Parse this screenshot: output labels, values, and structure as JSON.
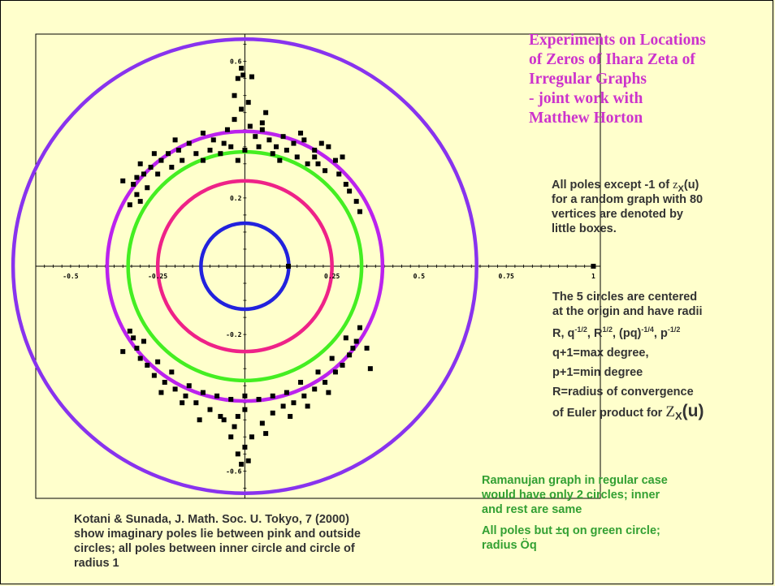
{
  "title_lines": [
    "Experiments on Locations",
    "of Zeros of Ihara Zeta of",
    "Irregular Graphs",
    "- joint work with",
    "Matthew Horton"
  ],
  "poles_text": {
    "line1_a": "All poles except -1 of ",
    "line1_z": "z",
    "line1_sub": "X",
    "line1_b": "(u)",
    "line2": "for a random graph with 80",
    "line3": "vertices are denoted by",
    "line4": "little boxes."
  },
  "circles_text": {
    "line1": "The 5 circles are centered",
    "line2": "at the origin and have radii",
    "radii": {
      "R": "R, q",
      "e1": "-1/2",
      "r2": ", R",
      "e2": "1/2",
      "r3": ", (pq)",
      "e3": "-1/4",
      "r4": ", p",
      "e4": "-1/2"
    },
    "line4": "q+1=max degree,",
    "line5": "p+1=min degree",
    "line6": "R=radius of convergence",
    "line7_a": "of Euler product for ",
    "line7_z": "Z",
    "line7_sub": "X",
    "line7_u": "(u)"
  },
  "ramanujan_text": {
    "line1": "Ramanujan graph in regular case",
    "line2": "would have only 2 circles; inner",
    "line3": "and rest are same",
    "line4": "All poles but ±q on green circle;",
    "line5": "radius Öq"
  },
  "kotani_text": {
    "line1": "Kotani & Sunada, J. Math. Soc. U. Tokyo, 7 (2000)",
    "line2": "show imaginary poles lie between pink and outside",
    "line3": "circles; all poles between inner circle and circle of",
    "line4": "radius 1"
  },
  "colors": {
    "background": "#ffffcc",
    "title": "#cc33cc",
    "body_text": "#333333",
    "green_text": "#33a033",
    "circle_inner": "#2222dd",
    "circle_pink": "#ee2288",
    "circle_green": "#44ee22",
    "circle_magenta": "#bb22ee",
    "circle_outer": "#8833ee",
    "points": "#000000"
  },
  "chart_data": {
    "type": "scatter",
    "title": "",
    "xlabel": "",
    "ylabel": "",
    "xlim": [
      -0.6,
      1.02
    ],
    "ylim": [
      -0.68,
      0.68
    ],
    "grid": false,
    "x_ticks": [
      {
        "v": -0.5,
        "label": "-0.5"
      },
      {
        "v": -0.25,
        "label": "-0.25"
      },
      {
        "v": 0.25,
        "label": "0.25"
      },
      {
        "v": 0.5,
        "label": "0.5"
      },
      {
        "v": 0.75,
        "label": "0.75"
      },
      {
        "v": 1,
        "label": "1"
      }
    ],
    "y_ticks": [
      {
        "v": 0.6,
        "label": "0.6"
      },
      {
        "v": 0.2,
        "label": "0.2"
      },
      {
        "v": -0.2,
        "label": "-0.2"
      },
      {
        "v": -0.6,
        "label": "-0.6"
      }
    ],
    "circles": [
      {
        "name": "inner",
        "r": 0.126,
        "color": "#2222dd"
      },
      {
        "name": "pink",
        "r": 0.25,
        "color": "#ee2288"
      },
      {
        "name": "green",
        "r": 0.335,
        "color": "#44ee22"
      },
      {
        "name": "magenta",
        "r": 0.395,
        "color": "#bb22ee"
      },
      {
        "name": "outer",
        "r": 0.665,
        "color": "#8833ee"
      }
    ],
    "points": [
      [
        1.0,
        0.0
      ],
      [
        0.125,
        0.0
      ],
      [
        -0.01,
        0.58
      ],
      [
        -0.02,
        0.55
      ],
      [
        -0.005,
        0.56
      ],
      [
        0.02,
        0.555
      ],
      [
        0.01,
        0.48
      ],
      [
        -0.01,
        0.46
      ],
      [
        -0.03,
        0.5
      ],
      [
        0.06,
        0.45
      ],
      [
        -0.03,
        0.43
      ],
      [
        0.015,
        0.41
      ],
      [
        -0.05,
        0.4
      ],
      [
        -0.12,
        0.39
      ],
      [
        -0.09,
        0.37
      ],
      [
        -0.06,
        0.36
      ],
      [
        0.05,
        0.4
      ],
      [
        0.03,
        0.38
      ],
      [
        0.07,
        0.37
      ],
      [
        0.09,
        0.35
      ],
      [
        0.11,
        0.38
      ],
      [
        0.14,
        0.36
      ],
      [
        0.17,
        0.37
      ],
      [
        0.2,
        0.34
      ],
      [
        0.24,
        0.35
      ],
      [
        0.26,
        0.31
      ],
      [
        -0.16,
        0.36
      ],
      [
        -0.19,
        0.34
      ],
      [
        -0.22,
        0.33
      ],
      [
        -0.24,
        0.31
      ],
      [
        -0.27,
        0.29
      ],
      [
        -0.29,
        0.27
      ],
      [
        -0.31,
        0.26
      ],
      [
        -0.32,
        0.24
      ],
      [
        -0.31,
        0.21
      ],
      [
        -0.3,
        0.19
      ],
      [
        -0.33,
        0.18
      ],
      [
        -0.28,
        0.23
      ],
      [
        -0.25,
        0.27
      ],
      [
        -0.21,
        0.29
      ],
      [
        -0.18,
        0.31
      ],
      [
        -0.14,
        0.33
      ],
      [
        -0.1,
        0.34
      ],
      [
        -0.07,
        0.33
      ],
      [
        -0.04,
        0.35
      ],
      [
        0.0,
        0.34
      ],
      [
        0.04,
        0.35
      ],
      [
        0.08,
        0.33
      ],
      [
        0.12,
        0.34
      ],
      [
        0.15,
        0.32
      ],
      [
        0.18,
        0.3
      ],
      [
        0.21,
        0.3
      ],
      [
        0.23,
        0.28
      ],
      [
        0.27,
        0.27
      ],
      [
        0.29,
        0.24
      ],
      [
        0.3,
        0.22
      ],
      [
        0.32,
        0.19
      ],
      [
        0.33,
        0.16
      ],
      [
        0.28,
        0.32
      ],
      [
        0.22,
        0.36
      ],
      [
        0.16,
        0.39
      ],
      [
        -0.2,
        0.37
      ],
      [
        -0.26,
        0.33
      ],
      [
        -0.3,
        0.3
      ],
      [
        -0.35,
        0.25
      ],
      [
        -0.12,
        0.31
      ],
      [
        -0.02,
        0.31
      ],
      [
        0.1,
        0.31
      ],
      [
        0.2,
        0.32
      ],
      [
        0.05,
        0.42
      ],
      [
        -0.01,
        -0.58
      ],
      [
        0.01,
        -0.57
      ],
      [
        -0.02,
        -0.55
      ],
      [
        0.0,
        -0.53
      ],
      [
        -0.04,
        -0.5
      ],
      [
        0.02,
        -0.5
      ],
      [
        -0.03,
        -0.47
      ],
      [
        0.05,
        -0.46
      ],
      [
        -0.07,
        -0.44
      ],
      [
        0.08,
        -0.43
      ],
      [
        -0.1,
        -0.42
      ],
      [
        0.11,
        -0.41
      ],
      [
        -0.14,
        -0.4
      ],
      [
        0.14,
        -0.4
      ],
      [
        -0.17,
        -0.38
      ],
      [
        0.17,
        -0.38
      ],
      [
        -0.2,
        -0.36
      ],
      [
        0.2,
        -0.36
      ],
      [
        -0.23,
        -0.34
      ],
      [
        0.23,
        -0.34
      ],
      [
        -0.26,
        -0.32
      ],
      [
        0.26,
        -0.31
      ],
      [
        -0.28,
        -0.29
      ],
      [
        0.28,
        -0.29
      ],
      [
        -0.3,
        -0.27
      ],
      [
        0.3,
        -0.26
      ],
      [
        -0.31,
        -0.24
      ],
      [
        0.31,
        -0.24
      ],
      [
        -0.32,
        -0.21
      ],
      [
        0.32,
        -0.22
      ],
      [
        -0.33,
        -0.19
      ],
      [
        0.33,
        -0.18
      ],
      [
        -0.29,
        -0.22
      ],
      [
        0.29,
        -0.21
      ],
      [
        -0.25,
        -0.28
      ],
      [
        0.25,
        -0.27
      ],
      [
        -0.21,
        -0.31
      ],
      [
        0.21,
        -0.31
      ],
      [
        -0.16,
        -0.35
      ],
      [
        0.16,
        -0.34
      ],
      [
        -0.12,
        -0.37
      ],
      [
        0.12,
        -0.37
      ],
      [
        -0.08,
        -0.38
      ],
      [
        0.08,
        -0.38
      ],
      [
        -0.04,
        -0.39
      ],
      [
        0.04,
        -0.39
      ],
      [
        0.0,
        -0.38
      ],
      [
        -0.18,
        -0.4
      ],
      [
        0.18,
        -0.41
      ],
      [
        -0.24,
        -0.37
      ],
      [
        0.24,
        -0.37
      ],
      [
        -0.35,
        -0.25
      ],
      [
        0.35,
        -0.24
      ],
      [
        -0.06,
        -0.45
      ],
      [
        0.06,
        -0.49
      ],
      [
        -0.02,
        -0.44
      ],
      [
        0.0,
        -0.42
      ],
      [
        -0.13,
        -0.45
      ],
      [
        0.13,
        -0.44
      ],
      [
        0.36,
        -0.3
      ]
    ]
  }
}
